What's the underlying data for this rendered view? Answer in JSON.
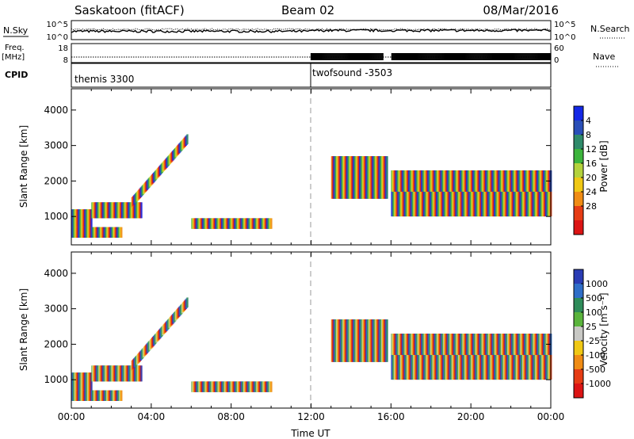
{
  "header": {
    "station": "Saskatoon (fitACF)",
    "beam": "Beam 02",
    "date": "08/Mar/2016"
  },
  "top_strips": {
    "nsky_label": "N.Sky",
    "nsky_ticks": [
      "10^5",
      "10^0"
    ],
    "nsearch_label": "N.Search",
    "nsearch_ticks": [
      "10^5",
      "10^0"
    ],
    "freq_label": "Freq.",
    "freq_unit": "[MHz]",
    "freq_ticks": [
      18,
      8
    ],
    "nave_label": "Nave",
    "nave_ticks": [
      60,
      0
    ],
    "cpid_label": "CPID",
    "cpid_segments": [
      {
        "name": "themis 3300",
        "start_hour": 0
      },
      {
        "name": "twofsound -3503",
        "start_hour": 12
      }
    ]
  },
  "chart_data": [
    {
      "type": "heatmap",
      "name": "power",
      "xlabel": "",
      "ylabel": "Slant Range [km]",
      "xlim": [
        0,
        24
      ],
      "ylim": [
        200,
        4600
      ],
      "yticks": [
        1000,
        2000,
        3000,
        4000
      ],
      "colorbar_label": "Power [dB]",
      "colorbar_ticks": [
        "4",
        "8",
        "12",
        "16",
        "20",
        "24",
        "28"
      ],
      "colors": [
        "#1428e6",
        "#2a4fb8",
        "#2f8a6a",
        "#3cb43c",
        "#b4d23c",
        "#f0c814",
        "#f08c14",
        "#e63c14",
        "#dc1414"
      ],
      "features": [
        {
          "h0": 0.0,
          "h1": 1.0,
          "r0": 700,
          "r1": 1200
        },
        {
          "h0": 1.0,
          "h1": 3.5,
          "r0": 950,
          "r1": 1400
        },
        {
          "h0": 3.0,
          "h1": 5.8,
          "r0": 1400,
          "r1": 3200
        },
        {
          "h0": 0.0,
          "h1": 2.5,
          "r0": 400,
          "r1": 700
        },
        {
          "h0": 6.0,
          "h1": 10.0,
          "r0": 650,
          "r1": 950
        },
        {
          "h0": 13.0,
          "h1": 15.8,
          "r0": 1500,
          "r1": 2700
        },
        {
          "h0": 16.0,
          "h1": 24.0,
          "r0": 1000,
          "r1": 1700
        },
        {
          "h0": 16.0,
          "h1": 24.0,
          "r0": 1700,
          "r1": 2300
        }
      ]
    },
    {
      "type": "heatmap",
      "name": "velocity",
      "xlabel": "Time UT",
      "ylabel": "Slant Range [km]",
      "xlim": [
        0,
        24
      ],
      "ylim": [
        200,
        4600
      ],
      "yticks": [
        1000,
        2000,
        3000,
        4000
      ],
      "xticks": [
        "00:00",
        "04:00",
        "08:00",
        "12:00",
        "16:00",
        "20:00",
        "00:00"
      ],
      "colorbar_label": "Velocity [m s⁻¹]",
      "colorbar_ticks": [
        "1000",
        "500",
        "100",
        "25",
        "-25",
        "-100",
        "-500",
        "-1000"
      ],
      "colors": [
        "#2a3cb4",
        "#2f6ec8",
        "#2f8c5a",
        "#5ab43c",
        "#c8c8c4",
        "#f0c814",
        "#f08c14",
        "#e63c14",
        "#dc1414"
      ],
      "features": [
        {
          "h0": 0.0,
          "h1": 1.0,
          "r0": 700,
          "r1": 1200
        },
        {
          "h0": 1.0,
          "h1": 3.5,
          "r0": 950,
          "r1": 1400
        },
        {
          "h0": 3.0,
          "h1": 5.8,
          "r0": 1400,
          "r1": 3200
        },
        {
          "h0": 0.0,
          "h1": 2.5,
          "r0": 400,
          "r1": 700
        },
        {
          "h0": 6.0,
          "h1": 10.0,
          "r0": 650,
          "r1": 950
        },
        {
          "h0": 13.0,
          "h1": 15.8,
          "r0": 1500,
          "r1": 2700
        },
        {
          "h0": 16.0,
          "h1": 24.0,
          "r0": 1000,
          "r1": 1700
        },
        {
          "h0": 16.0,
          "h1": 24.0,
          "r0": 1700,
          "r1": 2300
        }
      ]
    }
  ]
}
